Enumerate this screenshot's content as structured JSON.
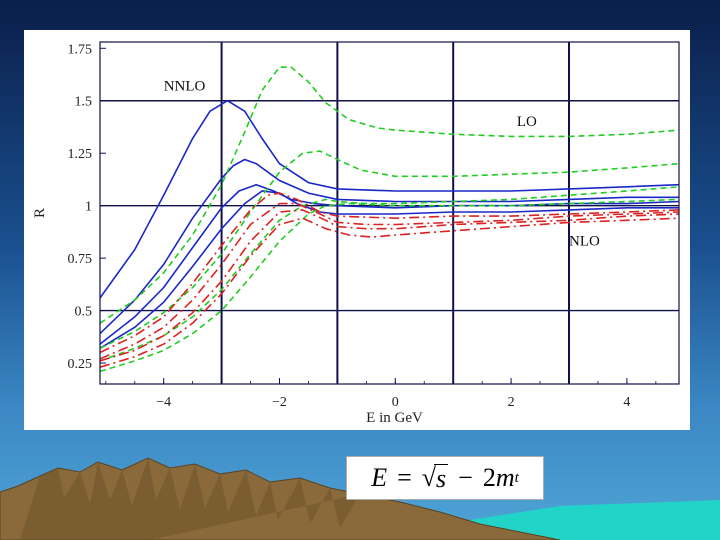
{
  "formula": {
    "lhs": "E",
    "eq": "=",
    "sqrt_sign": "√",
    "radicand": "s",
    "minus": "−",
    "coeff": "2",
    "var": "m",
    "subscript": "t"
  },
  "colors": {
    "NNLO": "#1a28c8",
    "LO": "#22cc22",
    "NLO": "#dd2222",
    "grid": "#10104a",
    "mountain": "#8a6a3a",
    "sea": "#22d4c8"
  },
  "chart_data": {
    "type": "line",
    "title": "",
    "xlabel": "E in GeV",
    "ylabel": "R",
    "xlim": [
      -5.1,
      4.9
    ],
    "ylim": [
      0.15,
      1.78
    ],
    "grid": true,
    "grid_x": [
      -3,
      -1,
      1,
      3
    ],
    "grid_y": [
      0.5,
      1.0,
      1.5
    ],
    "xticks": [
      -4,
      -2,
      0,
      2,
      4
    ],
    "xtick_labels": [
      "−4",
      "−2",
      "0",
      "2",
      "4"
    ],
    "yticks": [
      0.25,
      0.5,
      0.75,
      1.0,
      1.25,
      1.5,
      1.75
    ],
    "ytick_labels": [
      "0.25",
      "0.5",
      "0.75",
      "1",
      "1.25",
      "1.5",
      "1.75"
    ],
    "annotations": [
      {
        "text": "NNLO",
        "x": -4.0,
        "y": 1.55
      },
      {
        "text": "LO",
        "x": 2.1,
        "y": 1.38
      },
      {
        "text": "NLO",
        "x": 3.0,
        "y": 0.81
      }
    ],
    "series": [
      {
        "group": "NNLO",
        "style": "solid",
        "x": [
          -5.1,
          -4.5,
          -4.0,
          -3.5,
          -3.2,
          -2.9,
          -2.6,
          -2.3,
          -2.0,
          -1.5,
          -1.0,
          0,
          1,
          2,
          3,
          4,
          4.9
        ],
        "y": [
          0.56,
          0.79,
          1.05,
          1.32,
          1.45,
          1.5,
          1.45,
          1.32,
          1.2,
          1.11,
          1.08,
          1.07,
          1.07,
          1.07,
          1.08,
          1.09,
          1.1
        ]
      },
      {
        "group": "NNLO",
        "style": "solid",
        "x": [
          -5.1,
          -4.5,
          -4.0,
          -3.5,
          -3.0,
          -2.8,
          -2.6,
          -2.4,
          -2.0,
          -1.5,
          -1.0,
          0,
          1,
          2,
          3,
          4,
          4.9
        ],
        "y": [
          0.39,
          0.55,
          0.72,
          0.94,
          1.13,
          1.19,
          1.22,
          1.2,
          1.12,
          1.06,
          1.03,
          1.02,
          1.02,
          1.02,
          1.03,
          1.04,
          1.04
        ]
      },
      {
        "group": "NNLO",
        "style": "solid",
        "x": [
          -5.1,
          -4.5,
          -4.0,
          -3.5,
          -3.0,
          -2.7,
          -2.4,
          -2.1,
          -1.8,
          -1.4,
          -1.0,
          0,
          1,
          2,
          3,
          4,
          4.9
        ],
        "y": [
          0.34,
          0.47,
          0.61,
          0.8,
          0.99,
          1.07,
          1.1,
          1.07,
          1.03,
          1.01,
          1.0,
          0.99,
          1.0,
          1.0,
          1.01,
          1.01,
          1.02
        ]
      },
      {
        "group": "NNLO",
        "style": "solid",
        "x": [
          -5.1,
          -4.5,
          -4.0,
          -3.5,
          -3.0,
          -2.6,
          -2.3,
          -2.0,
          -1.7,
          -1.3,
          -1.0,
          0,
          1,
          2,
          3,
          4,
          4.9
        ],
        "y": [
          0.32,
          0.42,
          0.54,
          0.71,
          0.89,
          1.01,
          1.07,
          1.06,
          1.01,
          0.97,
          0.96,
          0.96,
          0.97,
          0.97,
          0.98,
          0.99,
          0.99
        ]
      },
      {
        "group": "LO",
        "style": "dashed",
        "x": [
          -5.1,
          -4.5,
          -4.0,
          -3.5,
          -3.0,
          -2.6,
          -2.3,
          -2.0,
          -1.8,
          -1.5,
          -1.2,
          -0.8,
          -0.3,
          0,
          1,
          2,
          3,
          4,
          4.9
        ],
        "y": [
          0.44,
          0.55,
          0.68,
          0.86,
          1.1,
          1.35,
          1.55,
          1.66,
          1.66,
          1.59,
          1.49,
          1.41,
          1.37,
          1.36,
          1.34,
          1.33,
          1.33,
          1.34,
          1.36
        ]
      },
      {
        "group": "LO",
        "style": "dashed",
        "x": [
          -5.1,
          -4.5,
          -4.0,
          -3.5,
          -3.0,
          -2.5,
          -2.0,
          -1.6,
          -1.3,
          -1.0,
          -0.6,
          0,
          1,
          2,
          3,
          4,
          4.9
        ],
        "y": [
          0.32,
          0.4,
          0.49,
          0.61,
          0.77,
          0.97,
          1.16,
          1.25,
          1.26,
          1.22,
          1.17,
          1.14,
          1.14,
          1.15,
          1.16,
          1.18,
          1.2
        ]
      },
      {
        "group": "LO",
        "style": "dashed",
        "x": [
          -5.1,
          -4.5,
          -4.0,
          -3.5,
          -3.0,
          -2.5,
          -2.0,
          -1.6,
          -1.2,
          -1.0,
          -0.5,
          0,
          1,
          2,
          3,
          4,
          4.9
        ],
        "y": [
          0.26,
          0.32,
          0.38,
          0.47,
          0.6,
          0.77,
          0.93,
          1.0,
          1.03,
          1.02,
          1.01,
          1.01,
          1.02,
          1.03,
          1.05,
          1.07,
          1.09
        ]
      },
      {
        "group": "LO",
        "style": "dashed",
        "x": [
          -5.1,
          -4.5,
          -4.0,
          -3.5,
          -3.0,
          -2.5,
          -2.0,
          -1.5,
          -1.2,
          -0.8,
          0,
          1,
          2,
          3,
          4,
          4.9
        ],
        "y": [
          0.21,
          0.26,
          0.31,
          0.39,
          0.5,
          0.66,
          0.83,
          0.96,
          1.0,
          1.01,
          1.0,
          1.0,
          1.0,
          1.01,
          1.02,
          1.03
        ]
      },
      {
        "group": "NLO",
        "style": "dashdot",
        "x": [
          -5.1,
          -4.5,
          -4.0,
          -3.5,
          -3.0,
          -2.5,
          -2.2,
          -2.0,
          -1.7,
          -1.3,
          -1.0,
          0,
          1,
          2,
          3,
          4,
          4.9
        ],
        "y": [
          0.3,
          0.38,
          0.47,
          0.63,
          0.81,
          0.98,
          1.05,
          1.06,
          1.03,
          0.97,
          0.95,
          0.94,
          0.95,
          0.95,
          0.96,
          0.97,
          0.98
        ]
      },
      {
        "group": "NLO",
        "style": "dashdot",
        "x": [
          -5.1,
          -4.5,
          -4.0,
          -3.5,
          -3.0,
          -2.5,
          -2.0,
          -1.7,
          -1.3,
          -1.0,
          -0.5,
          0,
          1,
          2,
          3,
          4,
          4.9
        ],
        "y": [
          0.27,
          0.34,
          0.42,
          0.55,
          0.72,
          0.91,
          1.01,
          1.01,
          0.96,
          0.92,
          0.91,
          0.91,
          0.92,
          0.93,
          0.95,
          0.96,
          0.97
        ]
      },
      {
        "group": "NLO",
        "style": "dashdot",
        "x": [
          -5.1,
          -4.5,
          -4.0,
          -3.5,
          -3.0,
          -2.5,
          -2.0,
          -1.6,
          -1.2,
          -1.0,
          -0.5,
          0,
          1,
          2,
          3,
          4,
          4.9
        ],
        "y": [
          0.26,
          0.31,
          0.38,
          0.49,
          0.64,
          0.83,
          0.97,
          0.98,
          0.93,
          0.9,
          0.89,
          0.89,
          0.91,
          0.92,
          0.93,
          0.95,
          0.96
        ]
      },
      {
        "group": "NLO",
        "style": "dashdot",
        "x": [
          -5.1,
          -4.5,
          -4.0,
          -3.5,
          -3.0,
          -2.5,
          -2.0,
          -1.6,
          -1.2,
          -0.8,
          -0.4,
          0,
          1,
          2,
          3,
          4,
          4.9
        ],
        "y": [
          0.23,
          0.28,
          0.34,
          0.44,
          0.58,
          0.76,
          0.91,
          0.94,
          0.89,
          0.86,
          0.85,
          0.86,
          0.88,
          0.9,
          0.92,
          0.93,
          0.94
        ]
      }
    ]
  }
}
